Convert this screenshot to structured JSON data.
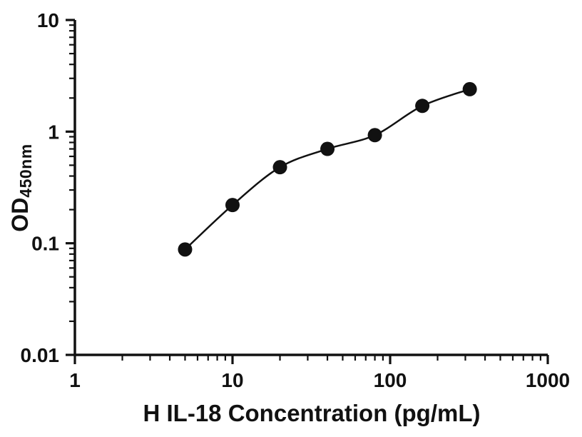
{
  "figure": {
    "background": "#ffffff"
  },
  "chart_data": {
    "type": "scatter",
    "title": "",
    "xlabel": "H IL-18 Concentration (pg/mL)",
    "ylabel_main": "OD",
    "ylabel_sub": "450nm",
    "xscale": "log",
    "yscale": "log",
    "xlim": [
      1,
      1000
    ],
    "ylim": [
      0.01,
      10
    ],
    "x_ticks": [
      1,
      10,
      100,
      1000
    ],
    "y_ticks": [
      0.01,
      0.1,
      1,
      10
    ],
    "x": [
      5,
      10,
      20,
      40,
      80,
      160,
      320
    ],
    "y": [
      0.088,
      0.22,
      0.48,
      0.7,
      0.93,
      1.7,
      2.4
    ],
    "fit_curve": true,
    "grid": false,
    "legend": "none",
    "marker_color": "#111111",
    "line_color": "#111111",
    "axis_color": "#111111"
  }
}
